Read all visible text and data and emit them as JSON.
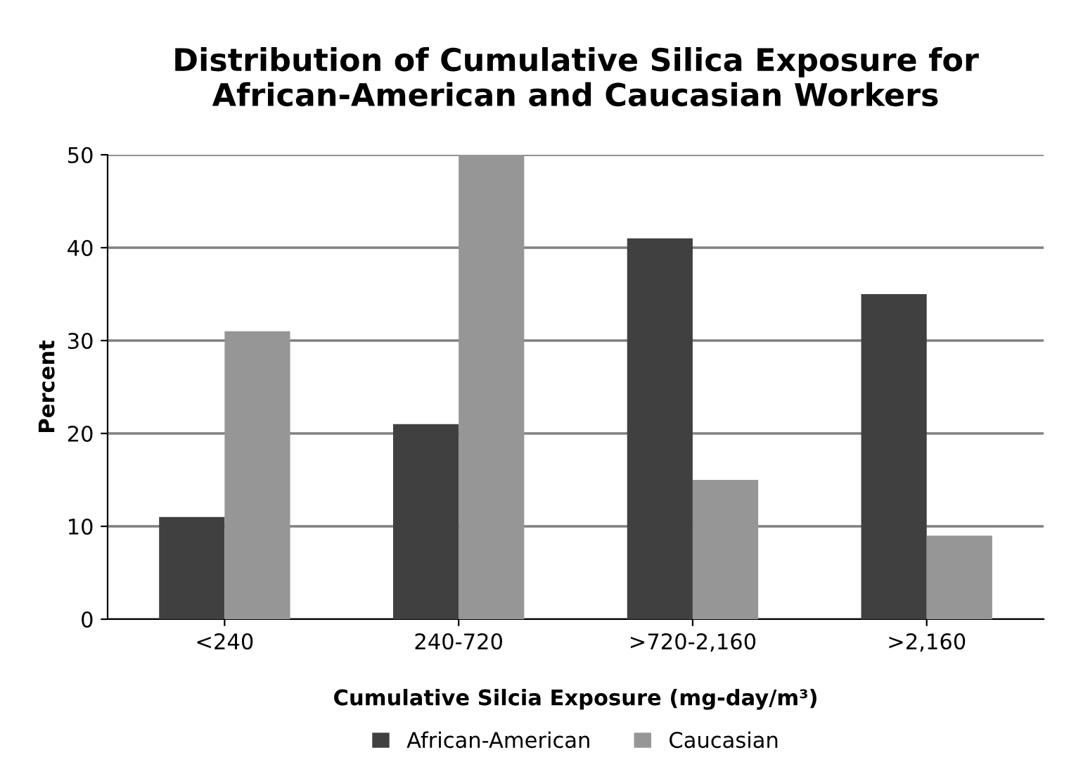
{
  "chart_data": {
    "type": "bar",
    "title": "Distribution of Cumulative Silica Exposure for\nAfrican-American and Caucasian Workers",
    "xlabel": "Cumulative Silcia Exposure (mg-day/m³)",
    "ylabel": "Percent",
    "categories": [
      "<240",
      "240-720",
      ">720-2,160",
      ">2,160"
    ],
    "series": [
      {
        "name": "African-American",
        "color": "#404040",
        "values": [
          11,
          21,
          41,
          35
        ]
      },
      {
        "name": "Caucasian",
        "color": "#969696",
        "values": [
          31,
          50,
          15,
          9
        ]
      }
    ],
    "ylim": [
      0,
      50
    ],
    "yticks": [
      0,
      10,
      20,
      30,
      40,
      50
    ],
    "grid": "y",
    "legend": "bottom"
  }
}
